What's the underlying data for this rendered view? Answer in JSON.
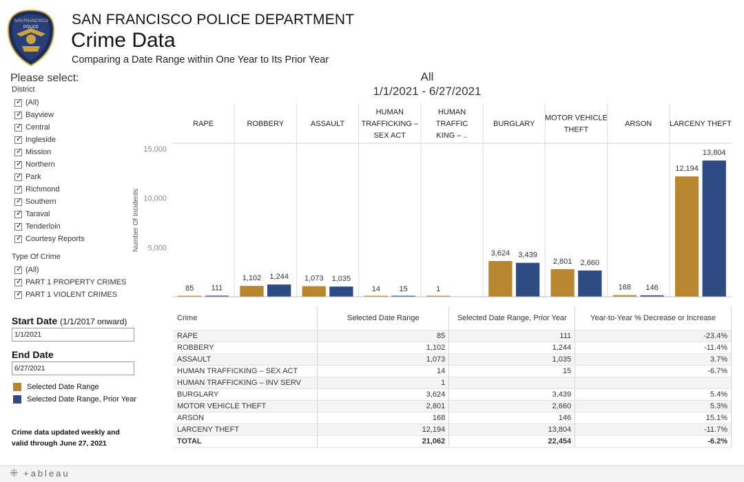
{
  "header": {
    "org": "SAN FRANCISCO POLICE DEPARTMENT",
    "title": "Crime Data",
    "subtitle": "Comparing a Date Range within One Year to Its Prior Year"
  },
  "badge": {
    "top_text": "SAN FRANCISCO",
    "middle_text": "POLICE"
  },
  "filters": {
    "prompt": "Please select:",
    "district_label": "District",
    "districts": [
      "(All)",
      "Bayview",
      "Central",
      "Ingleside",
      "Mission",
      "Northern",
      "Park",
      "Richmond",
      "Southern",
      "Taraval",
      "Tenderloin",
      "Courtesy Reports"
    ],
    "crime_type_label": "Type Of Crime",
    "crime_types": [
      "(All)",
      "PART 1 PROPERTY CRIMES",
      "PART 1 VIOLENT CRIMES"
    ]
  },
  "dates": {
    "start_label": "Start Date",
    "start_hint": "(1/1/2017 onward)",
    "start_value": "1/1/2021",
    "end_label": "End Date",
    "end_value": "6/27/2021"
  },
  "legend": [
    {
      "label": "Selected Date Range",
      "color": "#b8862f"
    },
    {
      "label": "Selected Date Range, Prior Year",
      "color": "#2f4b84"
    }
  ],
  "note": {
    "line1": "Crime data updated weekly and",
    "line2": "valid through June 27, 2021"
  },
  "chart_data": {
    "type": "bar",
    "title": "All",
    "subtitle": "1/1/2021 - 6/27/2021",
    "ylabel": "Number Of Incidents",
    "ylim": [
      0,
      16000
    ],
    "yticks": [
      5000,
      10000,
      15000
    ],
    "ytick_labels": [
      "5,000",
      "10,000",
      "15,000"
    ],
    "categories": [
      "RAPE",
      "ROBBERY",
      "ASSAULT",
      "HUMAN TRAFFICKING – SEX ACT",
      "HUMAN TRAFFICKING – ..",
      "BURGLARY",
      "MOTOR VEHICLE THEFT",
      "ARSON",
      "LARCENY THEFT"
    ],
    "category_header_lines": [
      [
        "RAPE"
      ],
      [
        "ROBBERY"
      ],
      [
        "ASSAULT"
      ],
      [
        "HUMAN",
        "TRAFFICKING –",
        "SEX ACT"
      ],
      [
        "HUMAN",
        "TRAFFIC",
        "KING – .."
      ],
      [
        "BURGLARY"
      ],
      [
        "MOTOR VEHICLE",
        "THEFT"
      ],
      [
        "ARSON"
      ],
      [
        "LARCENY THEFT"
      ]
    ],
    "series": [
      {
        "name": "Selected Date Range",
        "color": "#b8862f",
        "values": [
          85,
          1102,
          1073,
          14,
          1,
          3624,
          2801,
          168,
          12194
        ],
        "labels": [
          "85",
          "1,102",
          "1,073",
          "14",
          "1",
          "3,624",
          "2,801",
          "168",
          "12,194"
        ]
      },
      {
        "name": "Selected Date Range, Prior Year",
        "color": "#2f4b84",
        "values": [
          111,
          1244,
          1035,
          15,
          null,
          3439,
          2660,
          146,
          13804
        ],
        "labels": [
          "111",
          "1,244",
          "1,035",
          "15",
          "",
          "3,439",
          "2,660",
          "146",
          "13,804"
        ]
      }
    ]
  },
  "table": {
    "headers": [
      "Crime",
      "Selected Date Range",
      "Selected Date Range, Prior Year",
      "Year-to-Year % Decrease or Increase"
    ],
    "rows": [
      [
        "RAPE",
        "85",
        "111",
        "-23.4%"
      ],
      [
        "ROBBERY",
        "1,102",
        "1,244",
        "-11.4%"
      ],
      [
        "ASSAULT",
        "1,073",
        "1,035",
        "3.7%"
      ],
      [
        "HUMAN TRAFFICKING – SEX ACT",
        "14",
        "15",
        "-6.7%"
      ],
      [
        "HUMAN TRAFFICKING – INV SERV",
        "1",
        "",
        ""
      ],
      [
        "BURGLARY",
        "3,624",
        "3,439",
        "5.4%"
      ],
      [
        "MOTOR VEHICLE THEFT",
        "2,801",
        "2,660",
        "5.3%"
      ],
      [
        "ARSON",
        "168",
        "146",
        "15.1%"
      ],
      [
        "LARCENY THEFT",
        "12,194",
        "13,804",
        "-11.7%"
      ]
    ],
    "total": [
      "TOTAL",
      "21,062",
      "22,454",
      "-6.2%"
    ]
  },
  "footer": {
    "brand": "+ableau"
  }
}
